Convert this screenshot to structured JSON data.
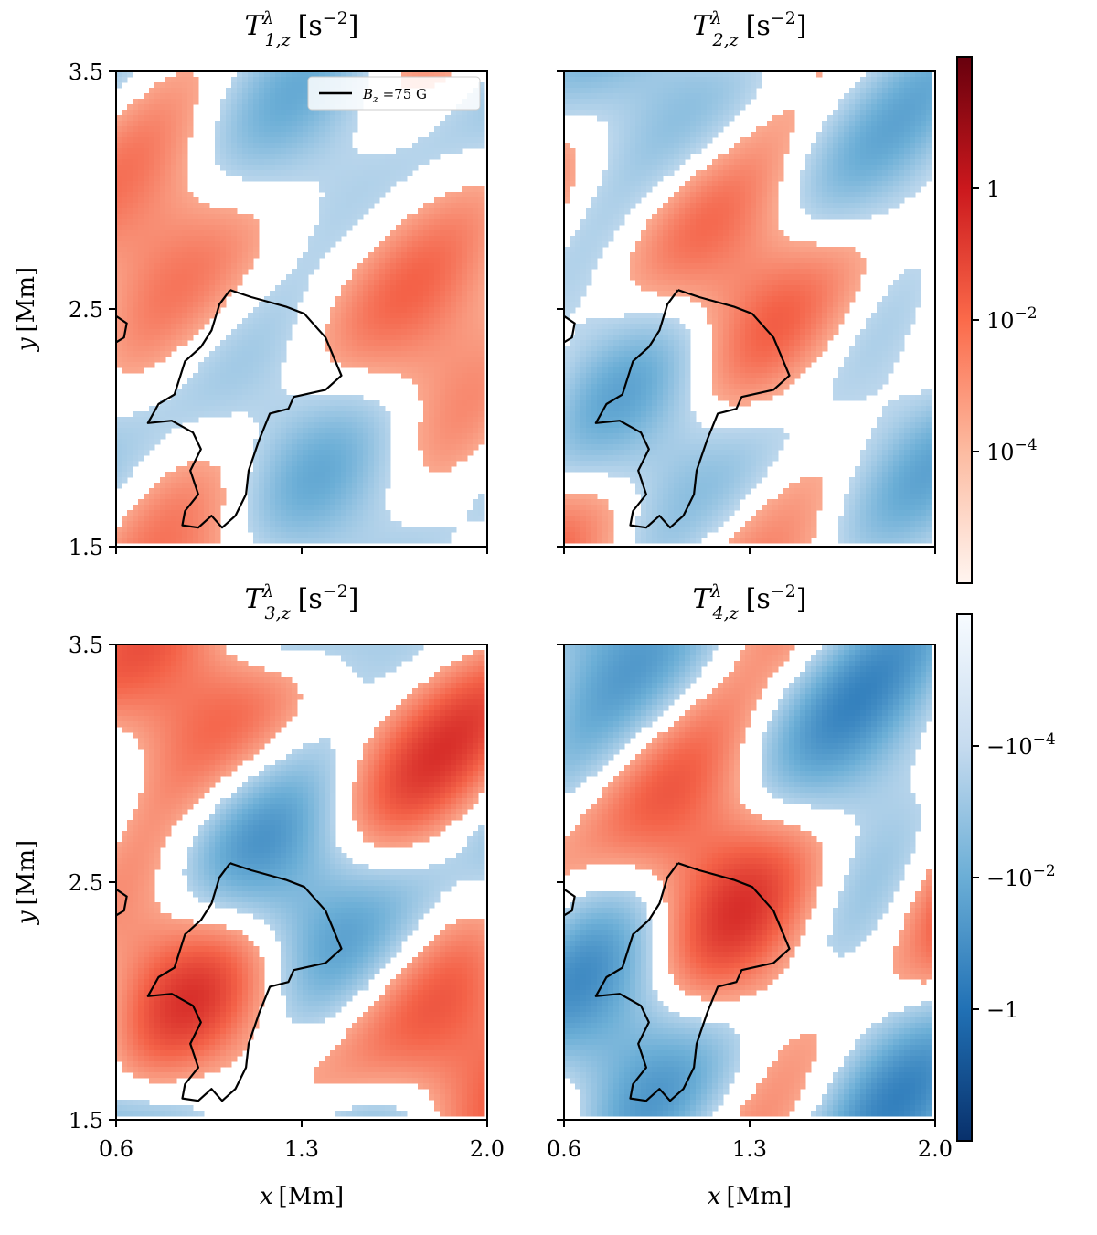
{
  "chart_data": {
    "type": "heatmap",
    "panels": [
      {
        "title": "T^λ_{1,z} [s^-2]",
        "sym": "T",
        "sup": "λ",
        "sub": "1,z",
        "unit": "[s",
        "unit_exp": "−2",
        "unit_close": "]",
        "intensity": 0.55,
        "density": 0.62,
        "seed": 11
      },
      {
        "title": "T^λ_{2,z} [s^-2]",
        "sym": "T",
        "sup": "λ",
        "sub": "2,z",
        "unit": "[s",
        "unit_exp": "−2",
        "unit_close": "]",
        "intensity": 0.6,
        "density": 0.7,
        "seed": 23
      },
      {
        "title": "T^λ_{3,z} [s^-2]",
        "sym": "T",
        "sup": "λ",
        "sub": "3,z",
        "unit": "[s",
        "unit_exp": "−2",
        "unit_close": "]",
        "intensity": 0.85,
        "density": 0.72,
        "seed": 37
      },
      {
        "title": "T^λ_{4,z} [s^-2]",
        "sym": "T",
        "sup": "λ",
        "sub": "4,z",
        "unit": "[s",
        "unit_exp": "−2",
        "unit_close": "]",
        "intensity": 0.9,
        "density": 0.74,
        "seed": 53
      }
    ],
    "x": {
      "label_sym": "x",
      "label_unit": "[Mm]",
      "lim": [
        0.6,
        2.0
      ],
      "ticks": [
        0.6,
        1.3,
        2.0
      ],
      "tick_labels": [
        "0.6",
        "1.3",
        "2.0"
      ]
    },
    "y": {
      "label_sym": "y",
      "label_unit": "[Mm]",
      "lim": [
        1.5,
        3.5
      ],
      "ticks": [
        1.5,
        2.5,
        3.5
      ],
      "tick_labels": [
        "1.5",
        "2.5",
        "3.5"
      ]
    },
    "legend": {
      "label": "B_z =75 G",
      "sym": "B",
      "sub": "z",
      "rest": " =75 G",
      "location": "upper right, first panel"
    },
    "colorbar_positive": {
      "ticks": [
        "1",
        "10^-2",
        "10^-4"
      ],
      "labels": [
        {
          "base": "1",
          "exp": ""
        },
        {
          "base": "10",
          "exp": "−2"
        },
        {
          "base": "10",
          "exp": "−4"
        }
      ],
      "cmap": "Reds"
    },
    "colorbar_negative": {
      "ticks": [
        "-10^-4",
        "-10^-2",
        "-1"
      ],
      "labels": [
        {
          "base": "−10",
          "exp": "−4"
        },
        {
          "base": "−10",
          "exp": "−2"
        },
        {
          "base": "−1",
          "exp": ""
        }
      ],
      "cmap": "Blues"
    },
    "contour": {
      "level": "B_z = 75 G",
      "main": [
        [
          1.03,
          2.58
        ],
        [
          1.11,
          2.55
        ],
        [
          1.24,
          2.51
        ],
        [
          1.31,
          2.48
        ],
        [
          1.39,
          2.38
        ],
        [
          1.45,
          2.22
        ],
        [
          1.39,
          2.16
        ],
        [
          1.27,
          2.13
        ],
        [
          1.25,
          2.08
        ],
        [
          1.18,
          2.06
        ],
        [
          1.14,
          1.95
        ],
        [
          1.1,
          1.82
        ],
        [
          1.09,
          1.72
        ],
        [
          1.05,
          1.63
        ],
        [
          1.0,
          1.58
        ],
        [
          0.96,
          1.63
        ],
        [
          0.91,
          1.58
        ],
        [
          0.85,
          1.59
        ],
        [
          0.86,
          1.65
        ],
        [
          0.91,
          1.72
        ],
        [
          0.88,
          1.82
        ],
        [
          0.92,
          1.91
        ],
        [
          0.89,
          1.98
        ],
        [
          0.81,
          2.03
        ],
        [
          0.72,
          2.02
        ],
        [
          0.76,
          2.1
        ],
        [
          0.82,
          2.14
        ],
        [
          0.86,
          2.28
        ],
        [
          0.92,
          2.34
        ],
        [
          0.96,
          2.41
        ],
        [
          0.99,
          2.52
        ],
        [
          1.03,
          2.58
        ]
      ],
      "edge": [
        [
          0.6,
          2.36
        ],
        [
          0.63,
          2.38
        ],
        [
          0.64,
          2.44
        ],
        [
          0.6,
          2.47
        ]
      ]
    }
  }
}
